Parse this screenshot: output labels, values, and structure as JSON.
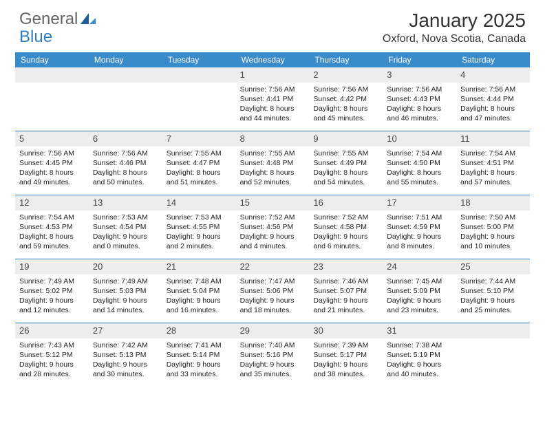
{
  "brand": {
    "left": "General",
    "right": "Blue"
  },
  "title": "January 2025",
  "location": "Oxford, Nova Scotia, Canada",
  "colors": {
    "header_bg": "#3a8bc9",
    "week_border": "#2f7ec2",
    "daynum_bg": "#eceded",
    "text": "#222222"
  },
  "dow": [
    "Sunday",
    "Monday",
    "Tuesday",
    "Wednesday",
    "Thursday",
    "Friday",
    "Saturday"
  ],
  "weeks": [
    [
      {
        "n": "",
        "empty": true
      },
      {
        "n": "",
        "empty": true
      },
      {
        "n": "",
        "empty": true
      },
      {
        "n": "1",
        "sr": "7:56 AM",
        "ss": "4:41 PM",
        "dl": "8 hours and 44 minutes."
      },
      {
        "n": "2",
        "sr": "7:56 AM",
        "ss": "4:42 PM",
        "dl": "8 hours and 45 minutes."
      },
      {
        "n": "3",
        "sr": "7:56 AM",
        "ss": "4:43 PM",
        "dl": "8 hours and 46 minutes."
      },
      {
        "n": "4",
        "sr": "7:56 AM",
        "ss": "4:44 PM",
        "dl": "8 hours and 47 minutes."
      }
    ],
    [
      {
        "n": "5",
        "sr": "7:56 AM",
        "ss": "4:45 PM",
        "dl": "8 hours and 49 minutes."
      },
      {
        "n": "6",
        "sr": "7:56 AM",
        "ss": "4:46 PM",
        "dl": "8 hours and 50 minutes."
      },
      {
        "n": "7",
        "sr": "7:55 AM",
        "ss": "4:47 PM",
        "dl": "8 hours and 51 minutes."
      },
      {
        "n": "8",
        "sr": "7:55 AM",
        "ss": "4:48 PM",
        "dl": "8 hours and 52 minutes."
      },
      {
        "n": "9",
        "sr": "7:55 AM",
        "ss": "4:49 PM",
        "dl": "8 hours and 54 minutes."
      },
      {
        "n": "10",
        "sr": "7:54 AM",
        "ss": "4:50 PM",
        "dl": "8 hours and 55 minutes."
      },
      {
        "n": "11",
        "sr": "7:54 AM",
        "ss": "4:51 PM",
        "dl": "8 hours and 57 minutes."
      }
    ],
    [
      {
        "n": "12",
        "sr": "7:54 AM",
        "ss": "4:53 PM",
        "dl": "8 hours and 59 minutes."
      },
      {
        "n": "13",
        "sr": "7:53 AM",
        "ss": "4:54 PM",
        "dl": "9 hours and 0 minutes."
      },
      {
        "n": "14",
        "sr": "7:53 AM",
        "ss": "4:55 PM",
        "dl": "9 hours and 2 minutes."
      },
      {
        "n": "15",
        "sr": "7:52 AM",
        "ss": "4:56 PM",
        "dl": "9 hours and 4 minutes."
      },
      {
        "n": "16",
        "sr": "7:52 AM",
        "ss": "4:58 PM",
        "dl": "9 hours and 6 minutes."
      },
      {
        "n": "17",
        "sr": "7:51 AM",
        "ss": "4:59 PM",
        "dl": "9 hours and 8 minutes."
      },
      {
        "n": "18",
        "sr": "7:50 AM",
        "ss": "5:00 PM",
        "dl": "9 hours and 10 minutes."
      }
    ],
    [
      {
        "n": "19",
        "sr": "7:49 AM",
        "ss": "5:02 PM",
        "dl": "9 hours and 12 minutes."
      },
      {
        "n": "20",
        "sr": "7:49 AM",
        "ss": "5:03 PM",
        "dl": "9 hours and 14 minutes."
      },
      {
        "n": "21",
        "sr": "7:48 AM",
        "ss": "5:04 PM",
        "dl": "9 hours and 16 minutes."
      },
      {
        "n": "22",
        "sr": "7:47 AM",
        "ss": "5:06 PM",
        "dl": "9 hours and 18 minutes."
      },
      {
        "n": "23",
        "sr": "7:46 AM",
        "ss": "5:07 PM",
        "dl": "9 hours and 21 minutes."
      },
      {
        "n": "24",
        "sr": "7:45 AM",
        "ss": "5:09 PM",
        "dl": "9 hours and 23 minutes."
      },
      {
        "n": "25",
        "sr": "7:44 AM",
        "ss": "5:10 PM",
        "dl": "9 hours and 25 minutes."
      }
    ],
    [
      {
        "n": "26",
        "sr": "7:43 AM",
        "ss": "5:12 PM",
        "dl": "9 hours and 28 minutes."
      },
      {
        "n": "27",
        "sr": "7:42 AM",
        "ss": "5:13 PM",
        "dl": "9 hours and 30 minutes."
      },
      {
        "n": "28",
        "sr": "7:41 AM",
        "ss": "5:14 PM",
        "dl": "9 hours and 33 minutes."
      },
      {
        "n": "29",
        "sr": "7:40 AM",
        "ss": "5:16 PM",
        "dl": "9 hours and 35 minutes."
      },
      {
        "n": "30",
        "sr": "7:39 AM",
        "ss": "5:17 PM",
        "dl": "9 hours and 38 minutes."
      },
      {
        "n": "31",
        "sr": "7:38 AM",
        "ss": "5:19 PM",
        "dl": "9 hours and 40 minutes."
      },
      {
        "n": "",
        "empty": true
      }
    ]
  ],
  "labels": {
    "sunrise": "Sunrise:",
    "sunset": "Sunset:",
    "daylight": "Daylight:"
  }
}
